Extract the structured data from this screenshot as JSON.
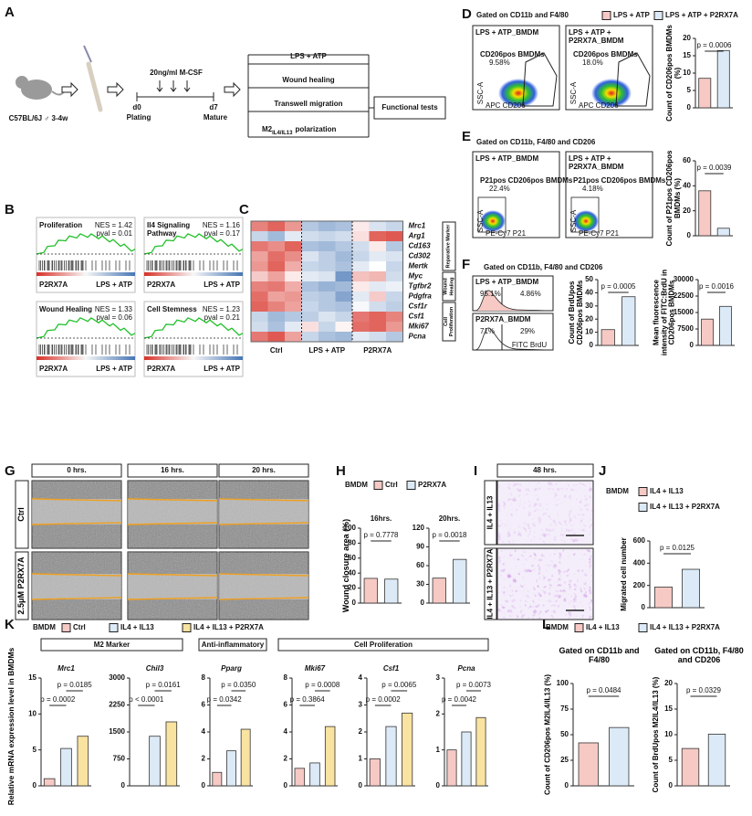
{
  "panel_labels": [
    "A",
    "B",
    "C",
    "D",
    "E",
    "F",
    "G",
    "H",
    "I",
    "J",
    "K",
    "L"
  ],
  "panel_a": {
    "mouse": "C57BL/6J ♂ 3-4w",
    "medium": "20ng/ml M-CSF",
    "start_day": "d0",
    "start_step": "Plating",
    "end_day": "d7",
    "end_step": "Mature",
    "tests": [
      "LPS + ATP",
      "Wound healing",
      "Transwell migration"
    ],
    "polarization": {
      "main": "M2",
      "sub": "IL4/IL13",
      "rest": "polarization"
    },
    "outcome": "Functional tests"
  },
  "panel_b": {
    "plots": [
      {
        "title_lines": [
          "Proliferation"
        ],
        "nes": "NES = 1.42",
        "pval": "pval = 0.01",
        "left": "P2RX7A",
        "right": "LPS + ATP"
      },
      {
        "title_lines": [
          "Il4 Signaling",
          "Pathway"
        ],
        "nes": "NES = 1.16",
        "pval": "pval = 0.17",
        "left": "P2RX7A",
        "right": "LPS + ATP"
      },
      {
        "title_lines": [
          "Wound Healing"
        ],
        "nes": "NES = 1.33",
        "pval": "pval = 0.06",
        "left": "P2RX7A",
        "right": "LPS + ATP"
      },
      {
        "title_lines": [
          "Cell Stemness"
        ],
        "nes": "NES = 1.23",
        "pval": "pval = 0.21",
        "left": "P2RX7A",
        "right": "LPS + ATP"
      }
    ]
  },
  "panel_c": {
    "genes": [
      "Mrc1",
      "Arg1",
      "Cd163",
      "Cd302",
      "Mertk",
      "Myc",
      "Tgfbr2",
      "Pdgfra",
      "Csf1r",
      "Csf1",
      "Mki67",
      "Pcna"
    ],
    "columns": [
      "Ctrl",
      "LPS + ATP",
      "P2RX7A"
    ],
    "groups": [
      "Reparative Marker",
      "Wound Healing",
      "Cell Proliferation"
    ],
    "values": [
      [
        1.2,
        1.5,
        1.0,
        -0.8,
        -1.0,
        -0.9,
        0.2,
        -0.4,
        -0.6
      ],
      [
        -0.6,
        -1.0,
        -0.3,
        -0.5,
        -0.6,
        -0.5,
        0.3,
        1.5,
        1.6
      ],
      [
        1.3,
        1.1,
        1.5,
        -0.9,
        -1.0,
        -0.8,
        -0.5,
        0.2,
        -0.8
      ],
      [
        0.9,
        1.4,
        1.1,
        -0.4,
        -0.7,
        -1.0,
        -0.6,
        -0.3,
        -0.4
      ],
      [
        1.0,
        1.5,
        0.8,
        -0.6,
        -0.7,
        -0.9,
        -0.3,
        0.0,
        -0.6
      ],
      [
        0.5,
        0.9,
        0.2,
        -0.3,
        -0.4,
        -1.5,
        0.6,
        0.7,
        -0.5
      ],
      [
        1.2,
        1.3,
        0.8,
        -0.9,
        -1.1,
        -1.0,
        0.2,
        -0.3,
        -0.2
      ],
      [
        1.4,
        0.9,
        1.0,
        -0.7,
        -0.8,
        -1.3,
        -0.3,
        0.5,
        -0.6
      ],
      [
        1.5,
        1.2,
        0.9,
        -0.6,
        -0.8,
        -0.9,
        -0.1,
        -0.5,
        -0.7
      ],
      [
        -0.6,
        -1.0,
        -0.8,
        -0.7,
        -0.4,
        -0.6,
        1.3,
        1.5,
        1.2
      ],
      [
        -0.5,
        -0.9,
        -0.3,
        0.3,
        -0.6,
        0.1,
        1.4,
        1.5,
        1.0
      ],
      [
        1.3,
        1.6,
        0.9,
        -0.6,
        -0.9,
        -1.0,
        -0.3,
        -0.5,
        -0.8
      ]
    ]
  },
  "panel_d": {
    "header": "Gated on CD11b and F4/80",
    "legend": {
      "items": [
        "LPS + ATP",
        "LPS + ATP + P2RX7A"
      ],
      "colors": [
        "#f6c9c4",
        "#dceaf7"
      ]
    },
    "plots": [
      {
        "title_lines": [
          "LPS + ATP_BMDM"
        ],
        "gate": "CD206pos BMDMs",
        "percent": "9.58%"
      },
      {
        "title_lines": [
          "LPS + ATP +",
          "P2RX7A_BMDM"
        ],
        "gate": "CD206pos BMDMs",
        "percent": "18.0%"
      }
    ],
    "y_axis": "SSC-A",
    "x_axis": "APC CD206"
  },
  "panel_e": {
    "header": "Gated on CD11b, F4/80 and CD206",
    "plots": [
      {
        "title_lines": [
          "LPS + ATP_BMDM"
        ],
        "gate": "P21pos CD206pos BMDMs",
        "percent": "22.4%"
      },
      {
        "title_lines": [
          "LPS + ATP +",
          "P2RX7A_BMDM"
        ],
        "gate": "P21pos CD206pos BMDMs",
        "percent": "4.18%"
      }
    ],
    "y_axis": "SSC-A",
    "x_axis": "PE-Cy7 P21"
  },
  "panel_f": {
    "header": "Gated on CD11b, F4/80 and CD206",
    "plots": [
      {
        "title": "LPS + ATP_BMDM",
        "left": "95.1%",
        "right": "4.86%"
      },
      {
        "title": "P2RX7A_BMDM",
        "left": "71%",
        "right": "29%"
      }
    ],
    "x_axis": "FITC BrdU"
  },
  "panel_g": {
    "columns": [
      "0 hrs.",
      "16 hrs.",
      "20 hrs."
    ],
    "rows": [
      "Ctrl",
      "2.5μM P2RX7A"
    ]
  },
  "panel_h": {
    "legend": {
      "title": "BMDM",
      "items": [
        "Ctrl",
        "P2RX7A"
      ],
      "colors": [
        "#f6c9c4",
        "#dceaf7"
      ]
    },
    "ylabel": "Wound closure area (%)"
  },
  "panel_i": {
    "column": "48 hrs.",
    "rows": [
      "IL4 + IL13",
      "IL4 + IL13 + P2RX7A"
    ]
  },
  "panel_j": {
    "legend": {
      "title": "BMDM",
      "items": [
        "IL4 + IL13",
        "IL4 + IL13 + P2RX7A"
      ],
      "colors": [
        "#f6c9c4",
        "#dceaf7"
      ]
    }
  },
  "panel_k": {
    "legend": {
      "title": "BMDM",
      "items": [
        "Ctrl",
        "IL4 + IL13",
        "IL4 + IL13 + P2RX7A"
      ],
      "colors": [
        "#f6c9c4",
        "#dceaf7",
        "#f9e3a0"
      ]
    },
    "groups": [
      "M2 Marker",
      "Anti-inflammatory",
      "Cell Proliferation"
    ],
    "ylabel": "Relative mRNA expression level in BMDMs"
  },
  "panel_l": {
    "legend": {
      "title": "BMDM",
      "items": [
        "IL4 + IL13",
        "IL4 + IL13 + P2RX7A"
      ],
      "colors": [
        "#f6c9c4",
        "#dceaf7"
      ]
    }
  },
  "chart_data": [
    {
      "type": "bar",
      "ylabel": "Count of CD206pos BMDMs (%)",
      "values": [
        8.5,
        16.5
      ],
      "colors": [
        "#f6c9c4",
        "#dceaf7"
      ],
      "ylim": [
        0,
        20
      ],
      "yticks": [
        0,
        5,
        10,
        15,
        20
      ],
      "annotations": [
        "p = 0.0006"
      ]
    },
    {
      "type": "bar",
      "ylabel": "Count of P21pos CD206pos BMDMs (%)",
      "values": [
        36,
        6
      ],
      "colors": [
        "#f6c9c4",
        "#dceaf7"
      ],
      "ylim": [
        0,
        60
      ],
      "yticks": [
        0,
        20,
        40,
        60
      ],
      "annotations": [
        "p = 0.0039"
      ]
    },
    {
      "type": "bar",
      "ylabel": "Count of BrdUpos CD206pos BMDMs",
      "values": [
        12,
        37
      ],
      "colors": [
        "#f6c9c4",
        "#dceaf7"
      ],
      "ylim": [
        0,
        50
      ],
      "yticks": [
        0,
        10,
        20,
        30,
        40,
        50
      ],
      "annotations": [
        "p = 0.0005"
      ]
    },
    {
      "type": "bar",
      "ylabel": "Mean fluorescence intensity of FITC:BrdU in CD206pos BMDMs",
      "values": [
        12000,
        17800
      ],
      "colors": [
        "#f6c9c4",
        "#dceaf7"
      ],
      "ylim": [
        0,
        30000
      ],
      "yticks": [
        0,
        7500,
        15000,
        22500,
        30000
      ],
      "annotations": [
        "p = 0.0016"
      ]
    },
    {
      "type": "bar",
      "title": "16hrs.",
      "values": [
        33,
        32
      ],
      "colors": [
        "#f6c9c4",
        "#dceaf7"
      ],
      "ylim": [
        0,
        100
      ],
      "yticks": [
        0,
        20,
        40,
        60,
        80,
        100
      ],
      "annotations": [
        "p = 0.7778"
      ]
    },
    {
      "type": "bar",
      "title": "20hrs.",
      "values": [
        40,
        70
      ],
      "colors": [
        "#f6c9c4",
        "#dceaf7"
      ],
      "ylim": [
        0,
        120
      ],
      "yticks": [
        0,
        30,
        60,
        90,
        120
      ],
      "annotations": [
        "p = 0.0018"
      ]
    },
    {
      "type": "bar",
      "ylabel": "Migrated cell number",
      "values": [
        185,
        345
      ],
      "colors": [
        "#f6c9c4",
        "#dceaf7"
      ],
      "ylim": [
        0,
        600
      ],
      "yticks": [
        0,
        200,
        400,
        600
      ],
      "annotations": [
        "p = 0.0125"
      ]
    },
    {
      "type": "bar",
      "title": "Mrc1",
      "values": [
        1,
        5.2,
        6.9
      ],
      "colors": [
        "#f6c9c4",
        "#dceaf7",
        "#f9e3a0"
      ],
      "ylim": [
        0,
        15
      ],
      "yticks": [
        0,
        5,
        10,
        15
      ],
      "annotations": [
        "p = 0.0002",
        "p = 0.0185"
      ]
    },
    {
      "type": "bar",
      "title": "Chil3",
      "values": [
        0,
        1380,
        1780
      ],
      "colors": [
        "#f6c9c4",
        "#dceaf7",
        "#f9e3a0"
      ],
      "ylim": [
        0,
        3000
      ],
      "yticks": [
        0,
        750,
        1500,
        2250,
        3000
      ],
      "annotations": [
        "p < 0.0001",
        "p = 0.0161"
      ]
    },
    {
      "type": "bar",
      "title": "Pparg",
      "values": [
        1,
        2.6,
        4.2
      ],
      "colors": [
        "#f6c9c4",
        "#dceaf7",
        "#f9e3a0"
      ],
      "ylim": [
        0,
        8
      ],
      "yticks": [
        0,
        2,
        4,
        6,
        8
      ],
      "annotations": [
        "p = 0.0342",
        "p = 0.0350"
      ]
    },
    {
      "type": "bar",
      "title": "Mki67",
      "values": [
        1.3,
        1.7,
        4.4
      ],
      "colors": [
        "#f6c9c4",
        "#dceaf7",
        "#f9e3a0"
      ],
      "ylim": [
        0,
        8
      ],
      "yticks": [
        0,
        2,
        4,
        6,
        8
      ],
      "annotations": [
        "p = 0.3864",
        "p = 0.0008"
      ]
    },
    {
      "type": "bar",
      "title": "Csf1",
      "values": [
        1,
        2.2,
        2.7
      ],
      "colors": [
        "#f6c9c4",
        "#dceaf7",
        "#f9e3a0"
      ],
      "ylim": [
        0,
        4
      ],
      "yticks": [
        0,
        1,
        2,
        3,
        4
      ],
      "annotations": [
        "p = 0.0002",
        "p = 0.0065"
      ]
    },
    {
      "type": "bar",
      "title": "Pcna",
      "values": [
        1,
        1.5,
        1.9
      ],
      "colors": [
        "#f6c9c4",
        "#dceaf7",
        "#f9e3a0"
      ],
      "ylim": [
        0,
        3
      ],
      "yticks": [
        0,
        1,
        2,
        3
      ],
      "annotations": [
        "p = 0.0042",
        "p = 0.0073"
      ]
    },
    {
      "type": "bar",
      "title": "Gated on CD11b and F4/80",
      "ylabel": "Count of CD206pos M2IL4/IL13 (%)",
      "values": [
        42,
        57
      ],
      "colors": [
        "#f6c9c4",
        "#dceaf7"
      ],
      "ylim": [
        0,
        100
      ],
      "yticks": [
        0,
        25,
        50,
        75,
        100
      ],
      "annotations": [
        "p = 0.0484"
      ]
    },
    {
      "type": "bar",
      "title": "Gated on CD11b, F4/80 and CD206",
      "ylabel": "Count of BrdUpos M2IL4/IL13 (%)",
      "values": [
        7.3,
        10.1
      ],
      "colors": [
        "#f6c9c4",
        "#dceaf7"
      ],
      "ylim": [
        0,
        20
      ],
      "yticks": [
        0,
        5,
        10,
        15,
        20
      ],
      "annotations": [
        "p = 0.0329"
      ]
    }
  ]
}
